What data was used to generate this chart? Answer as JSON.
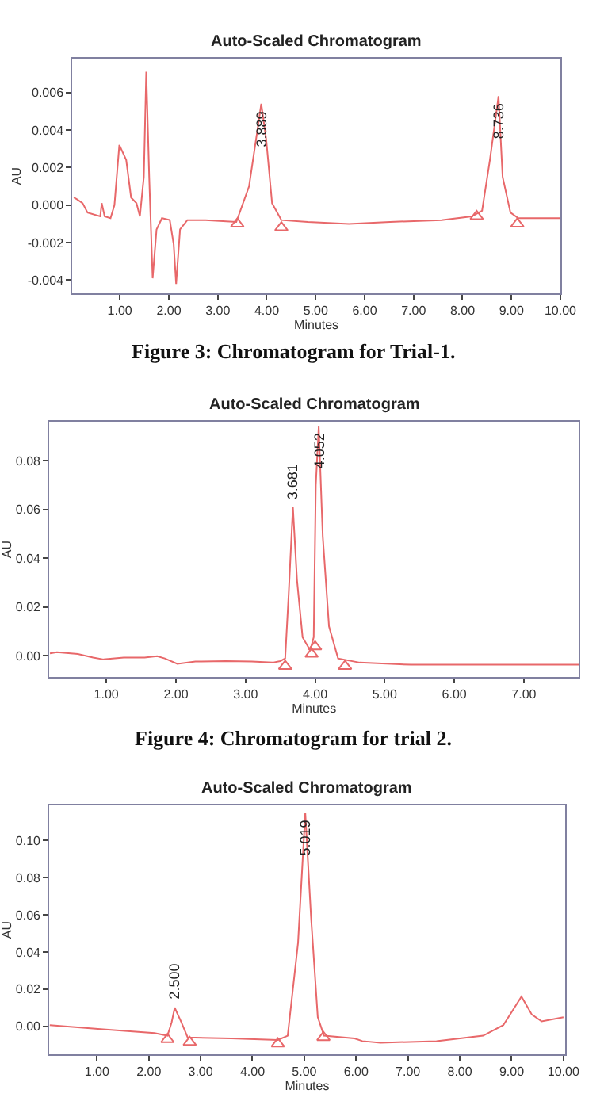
{
  "chart_data": [
    {
      "type": "line",
      "title": "Auto-Scaled Chromatogram",
      "xlabel": "Minutes",
      "ylabel": "AU",
      "xlim": [
        0.03,
        10.0
      ],
      "ylim": [
        -0.0047,
        0.0078
      ],
      "xticks": [
        {
          "value": 1,
          "label": "1.00"
        },
        {
          "value": 2,
          "label": "2.00"
        },
        {
          "value": 3,
          "label": "3.00"
        },
        {
          "value": 4,
          "label": "4.00"
        },
        {
          "value": 5,
          "label": "5.00"
        },
        {
          "value": 6,
          "label": "6.00"
        },
        {
          "value": 7,
          "label": "7.00"
        },
        {
          "value": 8,
          "label": "8.00"
        },
        {
          "value": 9,
          "label": "9.00"
        },
        {
          "value": 10,
          "label": "10.00"
        }
      ],
      "yticks": [
        {
          "value": -0.004,
          "label": "-0.004"
        },
        {
          "value": -0.002,
          "label": "-0.002"
        },
        {
          "value": 0,
          "label": "0.000"
        },
        {
          "value": 0.002,
          "label": "0.002"
        },
        {
          "value": 0.004,
          "label": "0.004"
        },
        {
          "value": 0.006,
          "label": "0.006"
        }
      ],
      "series": [
        {
          "marker": "none",
          "color": "#e8686a",
          "x": [
            0.06,
            0.13,
            0.24,
            0.34,
            0.6,
            0.63,
            0.69,
            0.81,
            0.89,
            0.99,
            1.13,
            1.23,
            1.34,
            1.41,
            1.49,
            1.54,
            1.6,
            1.67,
            1.75,
            1.86,
            2.02,
            2.1,
            2.15,
            2.23,
            2.38,
            2.75,
            3.38,
            3.64,
            3.8,
            3.889,
            3.99,
            4.11,
            4.3,
            4.84,
            5.68,
            6.52,
            7.57,
            8.19,
            8.4,
            8.56,
            8.736,
            8.82,
            8.98,
            9.14,
            10.0
          ],
          "values": [
            0.0004,
            0.0003,
            0.0001,
            -0.0004,
            -0.0006,
            0.0001,
            -0.0006,
            -0.0007,
            0,
            0.0032,
            0.0024,
            0.0004,
            0.0001,
            -0.0006,
            0.0015,
            0.0071,
            0.0015,
            -0.0039,
            -0.0013,
            -0.0007,
            -0.0008,
            -0.0021,
            -0.0042,
            -0.0013,
            -0.0008,
            -0.0008,
            -0.0009,
            0.001,
            0.0038,
            0.0054,
            0.0035,
            0.0001,
            -0.0008,
            -0.0009,
            -0.001,
            -0.0009,
            -0.0008,
            -0.0006,
            -0.0003,
            0.0024,
            0.0058,
            0.0015,
            -0.0004,
            -0.0007,
            -0.0007
          ]
        },
        {
          "type": "scatter",
          "marker": "triangle",
          "color": "#e8686a",
          "x": [
            3.4,
            4.3,
            8.29,
            9.12
          ],
          "values": [
            -0.001,
            -0.0012,
            -0.0006,
            -0.001
          ]
        }
      ],
      "annotations": [
        {
          "text": "3.889",
          "x": 3.889,
          "y": 0.0054
        },
        {
          "text": "8.736",
          "x": 8.736,
          "y": 0.0058
        },
        "Figure 3: Chromatogram for Trial-1."
      ]
    },
    {
      "type": "line",
      "title": "Auto-Scaled Chromatogram",
      "xlabel": "Minutes",
      "ylabel": "AU",
      "xlim": [
        0.18,
        7.79
      ],
      "ylim": [
        -0.0087,
        0.096
      ],
      "xticks": [
        {
          "value": 1,
          "label": "1.00"
        },
        {
          "value": 2,
          "label": "2.00"
        },
        {
          "value": 3,
          "label": "3.00"
        },
        {
          "value": 4,
          "label": "4.00"
        },
        {
          "value": 5,
          "label": "5.00"
        },
        {
          "value": 6,
          "label": "6.00"
        },
        {
          "value": 7,
          "label": "7.00"
        }
      ],
      "yticks": [
        {
          "value": 0,
          "label": "0.00"
        },
        {
          "value": 0.02,
          "label": "0.02"
        },
        {
          "value": 0.04,
          "label": "0.04"
        },
        {
          "value": 0.06,
          "label": "0.06"
        },
        {
          "value": 0.08,
          "label": "0.08"
        }
      ],
      "series": [
        {
          "marker": "none",
          "color": "#e8686a",
          "x": [
            0.19,
            0.29,
            0.59,
            0.81,
            0.96,
            1.25,
            1.55,
            1.73,
            1.84,
            2.02,
            2.28,
            2.72,
            3.09,
            3.39,
            3.5,
            3.57,
            3.62,
            3.681,
            3.74,
            3.82,
            3.93,
            3.98,
            4.01,
            4.052,
            4.11,
            4.2,
            4.33,
            4.64,
            5.38,
            7.79
          ],
          "values": [
            0.001,
            0.0015,
            0.0007,
            -0.0007,
            -0.0015,
            -0.0007,
            -0.0007,
            -0.0002,
            -0.0011,
            -0.0033,
            -0.0024,
            -0.0022,
            -0.0024,
            -0.0028,
            -0.0022,
            -0.0011,
            0.025,
            0.061,
            0.031,
            0.0076,
            0.0022,
            0.0076,
            0.07,
            0.094,
            0.049,
            0.012,
            -0.0011,
            -0.0028,
            -0.0037,
            -0.0037
          ]
        },
        {
          "type": "scatter",
          "marker": "triangle",
          "color": "#e8686a",
          "x": [
            3.57,
            3.95,
            4.0,
            4.43
          ],
          "values": [
            -0.0043,
            0.0007,
            0.0037,
            -0.0043
          ]
        }
      ],
      "annotations": [
        {
          "text": "3.681",
          "x": 3.681,
          "y": 0.061
        },
        {
          "text": "4.052",
          "x": 4.052,
          "y": 0.094
        },
        "Figure 4: Chromatogram for trial 2."
      ]
    },
    {
      "type": "line",
      "title": "Auto-Scaled Chromatogram",
      "xlabel": "Minutes",
      "ylabel": "AU",
      "xlim": [
        0.08,
        10.03
      ],
      "ylim": [
        -0.0151,
        0.119
      ],
      "xticks": [
        {
          "value": 1,
          "label": "1.00"
        },
        {
          "value": 2,
          "label": "2.00"
        },
        {
          "value": 3,
          "label": "3.00"
        },
        {
          "value": 4,
          "label": "4.00"
        },
        {
          "value": 5,
          "label": "5.00"
        },
        {
          "value": 6,
          "label": "6.00"
        },
        {
          "value": 7,
          "label": "7.00"
        },
        {
          "value": 8,
          "label": "8.00"
        },
        {
          "value": 9,
          "label": "9.00"
        },
        {
          "value": 10,
          "label": "10.00"
        }
      ],
      "yticks": [
        {
          "value": 0,
          "label": "0.00"
        },
        {
          "value": 0.02,
          "label": "0.02"
        },
        {
          "value": 0.04,
          "label": "0.04"
        },
        {
          "value": 0.06,
          "label": "0.06"
        },
        {
          "value": 0.08,
          "label": "0.08"
        },
        {
          "value": 0.1,
          "label": "0.10"
        }
      ],
      "series": [
        {
          "marker": "none",
          "color": "#e8686a",
          "x": [
            0.09,
            1.12,
            2.11,
            2.36,
            2.44,
            2.5,
            2.63,
            2.75,
            3.59,
            4.49,
            4.68,
            4.88,
            5.019,
            5.13,
            5.26,
            5.38,
            5.97,
            6.12,
            6.47,
            7.55,
            8.45,
            8.84,
            9.19,
            9.39,
            9.58,
            10.0
          ],
          "values": [
            0.0006,
            -0.0017,
            -0.0037,
            -0.0051,
            0.002,
            0.01,
            0.002,
            -0.006,
            -0.0066,
            -0.0074,
            -0.0051,
            0.045,
            0.115,
            0.059,
            0.0049,
            -0.0051,
            -0.0066,
            -0.008,
            -0.0089,
            -0.008,
            -0.0051,
            0.0006,
            0.016,
            0.0063,
            0.0026,
            0.0049
          ]
        },
        {
          "type": "scatter",
          "marker": "triangle",
          "color": "#e8686a",
          "x": [
            2.36,
            2.79,
            4.49,
            5.37
          ],
          "values": [
            -0.0071,
            -0.0086,
            -0.0094,
            -0.006
          ]
        }
      ],
      "annotations": [
        {
          "text": "2.500",
          "x": 2.5,
          "y": 0.01
        },
        {
          "text": "5.019",
          "x": 5.019,
          "y": 0.115
        }
      ]
    }
  ]
}
